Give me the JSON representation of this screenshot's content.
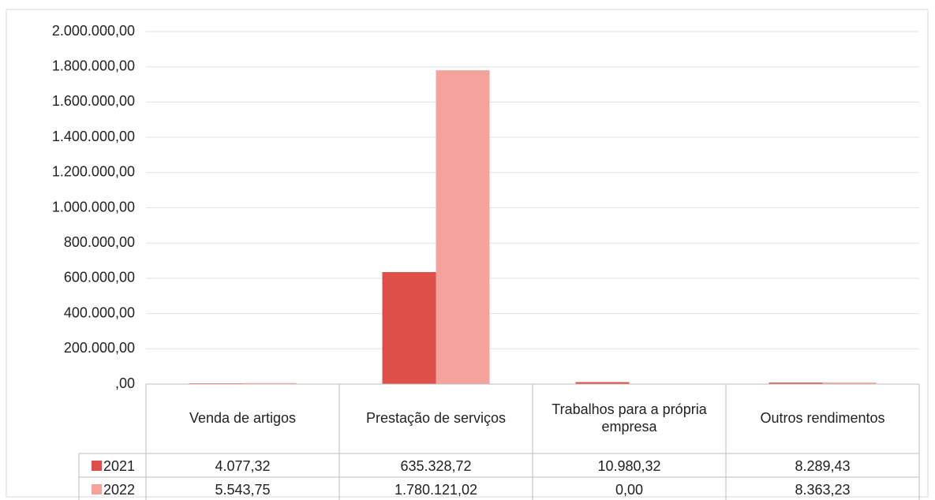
{
  "chart_data": {
    "type": "bar",
    "categories": [
      "Venda de artigos",
      "Prestação de serviços",
      "Trabalhos para a própria empresa",
      "Outros rendimentos"
    ],
    "series": [
      {
        "name": "2021",
        "color": "#dd4f48",
        "values": [
          4077.32,
          635328.72,
          10980.32,
          8289.43
        ],
        "value_labels": [
          "4.077,32",
          "635.328,72",
          "10.980,32",
          "8.289,43"
        ]
      },
      {
        "name": "2022",
        "color": "#f5a29c",
        "values": [
          5543.75,
          1780121.02,
          0,
          8363.23
        ],
        "value_labels": [
          "5.543,75",
          "1.780.121,02",
          "0,00",
          "8.363,23"
        ]
      }
    ],
    "ylim": [
      0,
      2000000
    ],
    "yticks": [
      {
        "value": 0,
        "label": ",00"
      },
      {
        "value": 200000,
        "label": "200.000,00"
      },
      {
        "value": 400000,
        "label": "400.000,00"
      },
      {
        "value": 600000,
        "label": "600.000,00"
      },
      {
        "value": 800000,
        "label": "800.000,00"
      },
      {
        "value": 1000000,
        "label": "1.000.000,00"
      },
      {
        "value": 1200000,
        "label": "1.200.000,00"
      },
      {
        "value": 1400000,
        "label": "1.400.000,00"
      },
      {
        "value": 1600000,
        "label": "1.600.000,00"
      },
      {
        "value": 1800000,
        "label": "1.800.000,00"
      },
      {
        "value": 2000000,
        "label": "2.000.000,00"
      }
    ],
    "grid": true
  }
}
